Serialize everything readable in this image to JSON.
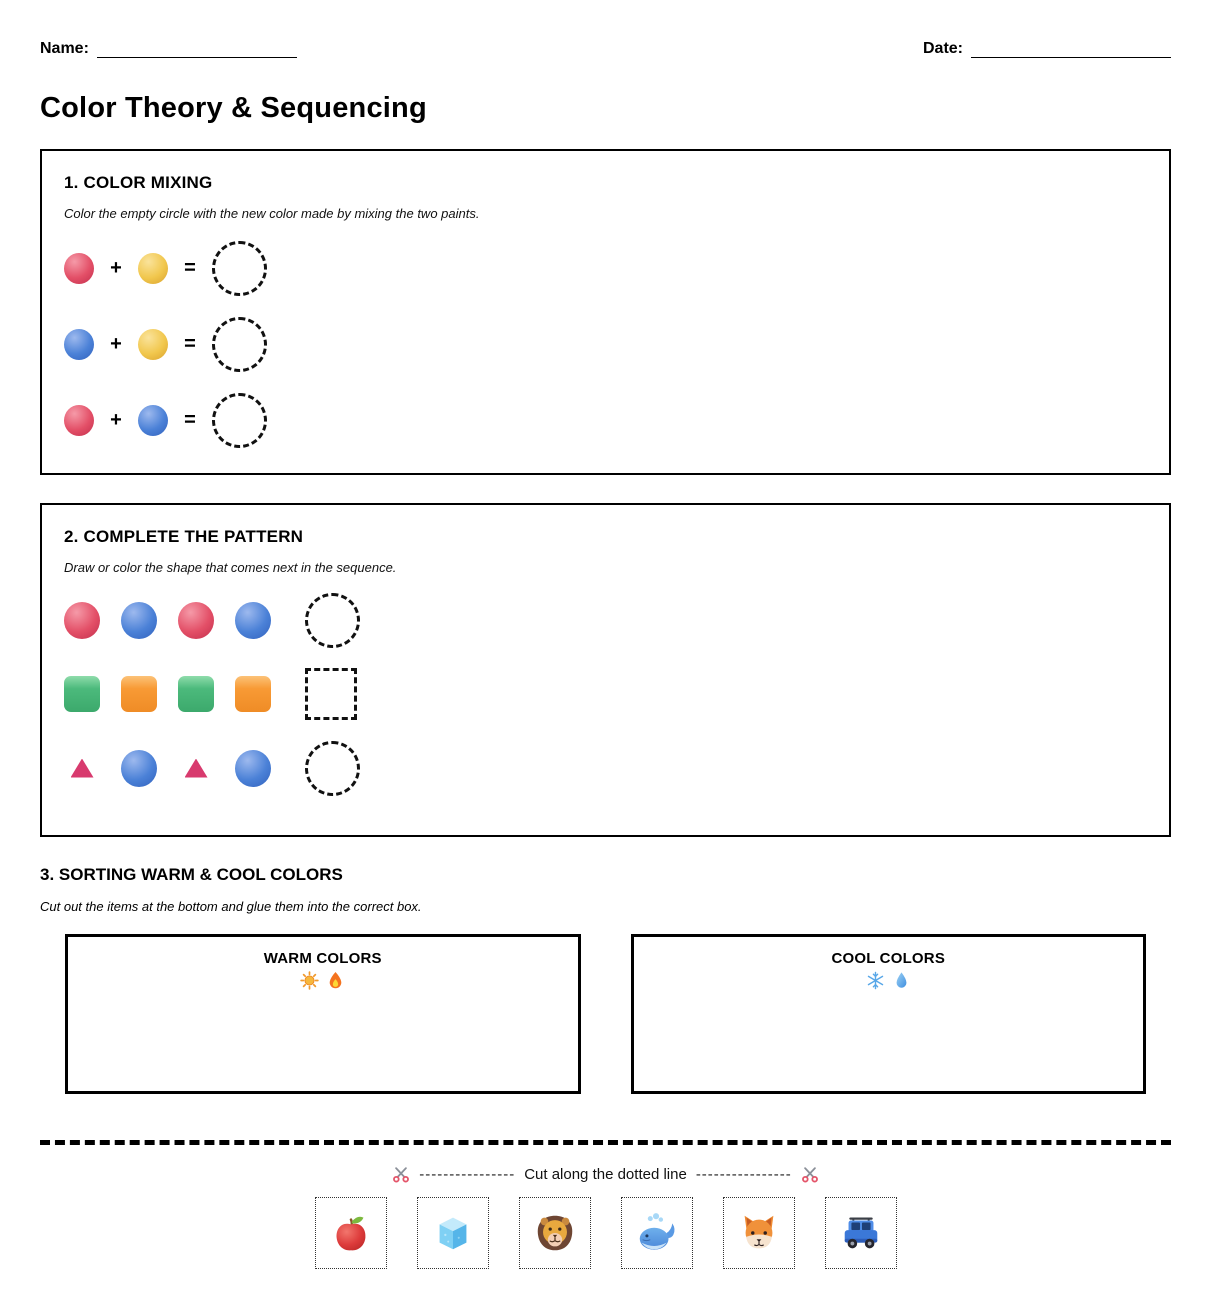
{
  "header": {
    "name_label": "Name:",
    "date_label": "Date:"
  },
  "title": "Color Theory & Sequencing",
  "symbols": {
    "plus": "+",
    "equals": "="
  },
  "section1": {
    "heading": "1. COLOR MIXING",
    "instruction": "Color the empty circle with the new color made by mixing the two paints.",
    "rows": [
      {
        "left": "red-ball",
        "right": "yellow-ball",
        "answer": "dashed-circle"
      },
      {
        "left": "blue-ball",
        "right": "yellow-ball",
        "answer": "dashed-circle"
      },
      {
        "left": "red-ball",
        "right": "blue-ball",
        "answer": "dashed-circle"
      }
    ]
  },
  "section2": {
    "heading": "2. COMPLETE THE PATTERN",
    "instruction": "Draw or color the shape that comes next in the sequence.",
    "rows": [
      {
        "items": [
          "red-ball",
          "blue-ball",
          "red-ball",
          "blue-ball"
        ],
        "answer": "dashed-circle"
      },
      {
        "items": [
          "green-square",
          "orange-square",
          "green-square",
          "orange-square"
        ],
        "answer": "dashed-square"
      },
      {
        "items": [
          "pink-triangle",
          "blue-ball",
          "pink-triangle",
          "blue-ball"
        ],
        "answer": "dashed-circle"
      }
    ]
  },
  "section3": {
    "heading": "3. SORTING WARM & COOL COLORS",
    "instruction": "Cut out the items at the bottom and glue them into the correct box.",
    "boxes": [
      {
        "title": "WARM COLORS",
        "icons": [
          "sun-icon",
          "fire-icon"
        ]
      },
      {
        "title": "COOL COLORS",
        "icons": [
          "snowflake-icon",
          "droplet-icon"
        ]
      }
    ]
  },
  "cut_strip": {
    "left_dashes": "----------------",
    "label": "Cut along the dotted line",
    "right_dashes": "----------------",
    "items": [
      "apple-icon",
      "ice-cube-icon",
      "lion-icon",
      "whale-icon",
      "fox-icon",
      "car-icon"
    ]
  },
  "colors": {
    "red": "#e34f67",
    "yellow": "#f1c74d",
    "blue": "#4b81d7",
    "green": "#49b87a",
    "orange": "#f89a35",
    "pink_triangle": "#d83a6e",
    "scissors_handle": "#e4556a",
    "border": "#000000"
  }
}
